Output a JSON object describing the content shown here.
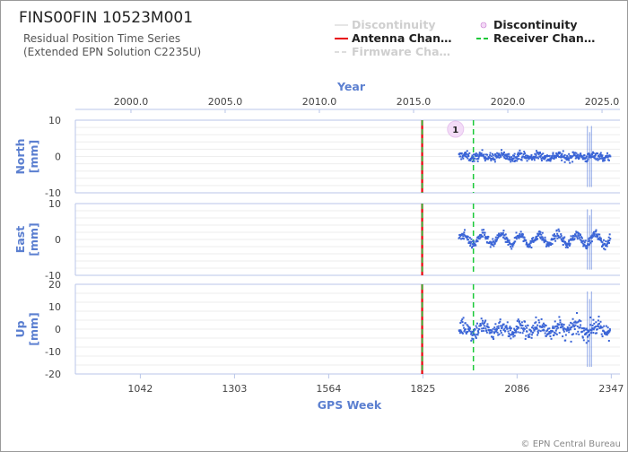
{
  "header": {
    "title": "FINS00FIN 10523M001",
    "subtitle_line1": "Residual Position Time Series",
    "subtitle_line2": "(Extended EPN Solution C2235U)",
    "credit": "© EPN Central Bureau"
  },
  "legend": [
    {
      "label": "Discontinuity",
      "style": "solid",
      "color": "#e6e6e6",
      "muted": true
    },
    {
      "label": "Discontinuity",
      "style": "marker",
      "color": "#c779d0",
      "muted": false
    },
    {
      "label": "Antenna Chan…",
      "style": "solid",
      "color": "#e8000b",
      "muted": false
    },
    {
      "label": "Receiver Chan…",
      "style": "dashed",
      "color": "#1ac938",
      "muted": false
    },
    {
      "label": "Firmware Cha…",
      "style": "dashed",
      "color": "#dddddd",
      "muted": true
    }
  ],
  "chart_data": {
    "type": "scatter",
    "top_axis": {
      "label": "Year",
      "ticks": [
        "2000.0",
        "2005.0",
        "2010.0",
        "2015.0",
        "2020.0",
        "2025.0"
      ],
      "tick_values": [
        2000.0,
        2005.0,
        2010.0,
        2015.0,
        2020.0,
        2025.0
      ]
    },
    "x_axis": {
      "label": "GPS Week",
      "ticks": [
        "1042",
        "1303",
        "1564",
        "1825",
        "2086",
        "2347"
      ],
      "tick_values": [
        1042,
        1303,
        1564,
        1825,
        2086,
        2347
      ],
      "range": [
        862,
        2371
      ]
    },
    "year_range": [
      1997.05,
      2025.95
    ],
    "panels": [
      {
        "name": "North",
        "ylabel": "North\n[mm]",
        "ylim": [
          -10,
          10
        ],
        "yticks": [
          "10",
          "0",
          "-10"
        ],
        "ytick_values": [
          10,
          0,
          -10
        ],
        "noise": 1.1,
        "seasonal_amp": 0.4
      },
      {
        "name": "East",
        "ylabel": "East\n[mm]",
        "ylim": [
          -10,
          10
        ],
        "yticks": [
          "10",
          "0",
          "-10"
        ],
        "ytick_values": [
          10,
          0,
          -10
        ],
        "noise": 1.1,
        "seasonal_amp": 1.4
      },
      {
        "name": "Up",
        "ylabel": "Up\n[mm]",
        "ylim": [
          -20,
          20
        ],
        "yticks": [
          "20",
          "10",
          "0",
          "-10",
          "-20"
        ],
        "ytick_values": [
          20,
          10,
          0,
          -10,
          -20
        ],
        "noise": 3.6,
        "seasonal_amp": 1.5
      }
    ],
    "series": {
      "gps_week_start": 1925,
      "gps_week_end": 2344,
      "color": "#3a64d6",
      "spike_weeks": [
        2281,
        2287,
        2292
      ]
    },
    "events": [
      {
        "type": "Antenna Change",
        "gps_week": 1823,
        "color": "#e8000b",
        "style": "solid"
      },
      {
        "type": "Receiver Change",
        "gps_week": 1823,
        "color": "#1ac938",
        "style": "dashed"
      },
      {
        "type": "Receiver Change",
        "gps_week": 1965,
        "color": "#1ac938",
        "style": "dashed"
      },
      {
        "type": "Discontinuity",
        "gps_week": 1923,
        "color": "#c779d0",
        "style": "marker",
        "badge": "1"
      }
    ],
    "grid": true
  }
}
